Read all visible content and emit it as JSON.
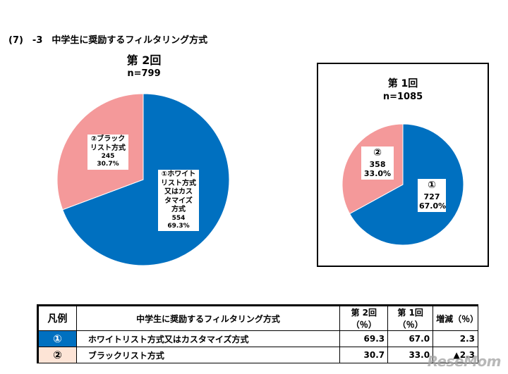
{
  "heading": "(7)　-3　中学生に奨励するフィルタリング方式",
  "colors": {
    "whitelist": "#0070c0",
    "blacklist": "#f4999a",
    "legend_row2_bg": "#fde4d6"
  },
  "chart_data": [
    {
      "type": "pie",
      "title": "第 2回",
      "subtitle": "n=799",
      "slices": [
        {
          "label_lines": [
            "①ホワイト",
            "リスト方式",
            "又はカス",
            "タマイズ",
            "方式"
          ],
          "count": "554",
          "percent": "69.3%",
          "value": 69.3,
          "color": "#0070c0"
        },
        {
          "label_lines": [
            "②ブラック",
            "リスト方式"
          ],
          "count": "245",
          "percent": "30.7%",
          "value": 30.7,
          "color": "#f4999a"
        }
      ]
    },
    {
      "type": "pie",
      "title": "第 1回",
      "subtitle": "n=1085",
      "slices": [
        {
          "label_lines": [
            "①"
          ],
          "count": "727",
          "percent": "67.0%",
          "value": 67.0,
          "color": "#0070c0"
        },
        {
          "label_lines": [
            "②"
          ],
          "count": "358",
          "percent": "33.0%",
          "value": 33.0,
          "color": "#f4999a"
        }
      ]
    }
  ],
  "legend_table": {
    "headers": [
      "凡例",
      "中学生に奨励するフィルタリング方式",
      "第 2回（％）",
      "第 1回（％）",
      "増減（％）"
    ],
    "rows": [
      {
        "symbol": "①",
        "name": "ホワイトリスト方式又はカスタマイズ方式",
        "r2": "69.3",
        "r1": "67.0",
        "diff": "2.3"
      },
      {
        "symbol": "②",
        "name": "ブラックリスト方式",
        "r2": "30.7",
        "r1": "33.0",
        "diff": "▲2.3"
      }
    ]
  },
  "watermark": "ReseMom"
}
